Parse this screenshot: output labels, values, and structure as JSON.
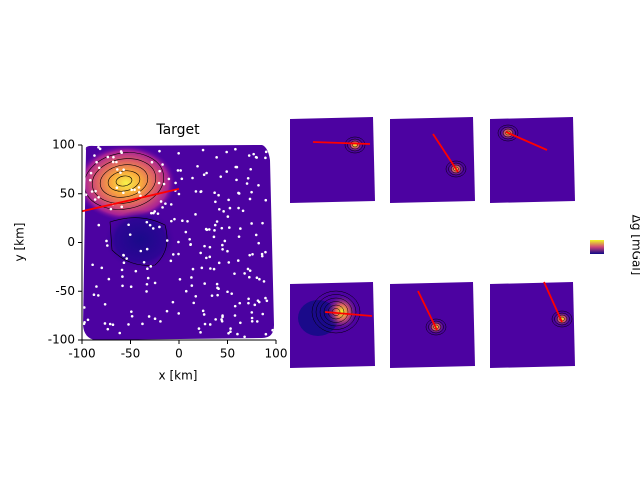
{
  "chart_data": {
    "type": "contour",
    "title": "Target",
    "x_label": "x [km]",
    "y_label": "y [km]",
    "xlim": [
      -100,
      100
    ],
    "ylim": [
      -100,
      100
    ],
    "xticks": [
      -100,
      -50,
      0,
      50,
      100
    ],
    "yticks": [
      -100,
      -50,
      0,
      50,
      100
    ],
    "colorbar_label": "Δg [mGal]",
    "line": {
      "color": "#ff0000",
      "x": [
        -100,
        0
      ],
      "y": [
        32,
        55
      ]
    }
  }
}
